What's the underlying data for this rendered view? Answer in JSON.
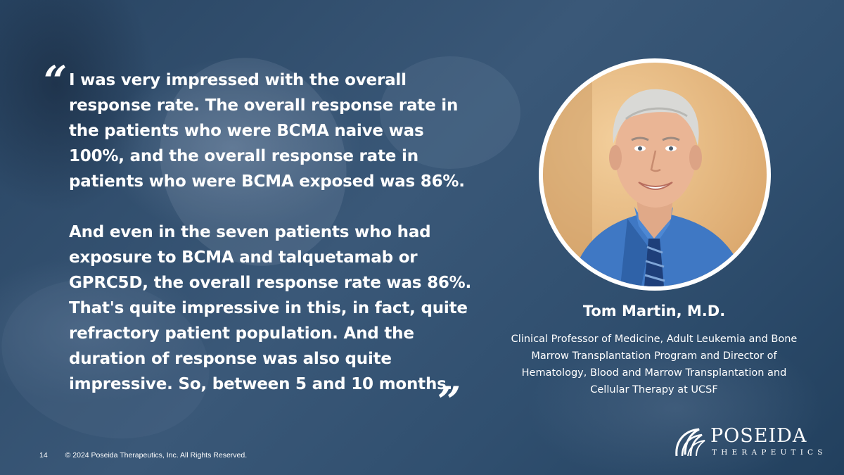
{
  "quote": {
    "paragraph1": "I was very impressed with the overall response rate. The overall response rate in the patients who were BCMA naive was 100%, and the overall response rate in patients who were BCMA exposed was 86%.",
    "paragraph2": "And even in the seven patients who had exposure to BCMA and talquetamab or GPRC5D, the overall response rate was 86%. That's quite impressive in this, in fact, quite refractory patient population. And the duration of response was also quite impressive. So, between 5 and 10 months.",
    "open_mark": "“",
    "close_mark": "”"
  },
  "speaker": {
    "name": "Tom Martin, M.D.",
    "title": "Clinical Professor of Medicine, Adult Leukemia and Bone Marrow Transplantation Program and Director of Hematology, Blood and Marrow Transplantation and Cellular Therapy at UCSF"
  },
  "footer": {
    "page_number": "14",
    "copyright": "© 2024 Poseida Therapeutics, Inc. All Rights Reserved."
  },
  "logo": {
    "word": "POSEIDA",
    "sub": "THERAPEUTICS"
  },
  "colors": {
    "background": "#2e4a66",
    "text": "#ffffff",
    "portrait_backdrop": "#e2b27a",
    "shirt": "#3f78c4"
  }
}
